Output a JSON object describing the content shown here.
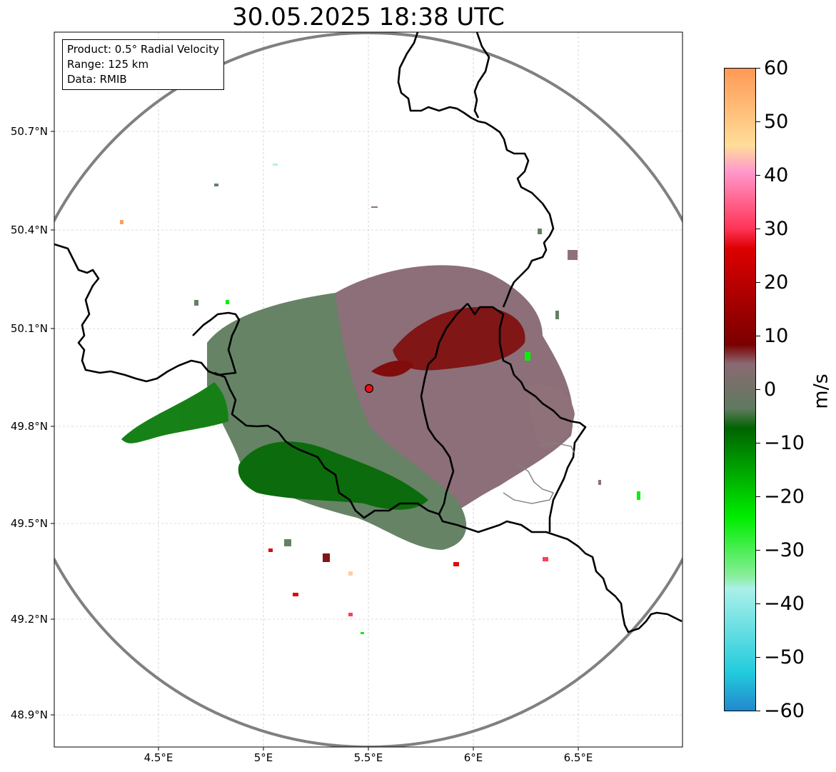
{
  "title": "30.05.2025 18:38 UTC",
  "info": {
    "product": "Product: 0.5° Radial Velocity",
    "range": "Range: 125 km",
    "data": "Data: RMIB"
  },
  "axes": {
    "lat_ticks": [
      "50.7°N",
      "50.4°N",
      "50.1°N",
      "49.8°N",
      "49.5°N",
      "49.2°N",
      "48.9°N"
    ],
    "lon_ticks": [
      "4.5°E",
      "5°E",
      "5.5°E",
      "6°E",
      "6.5°E"
    ]
  },
  "colorbar": {
    "unit": "m/s",
    "ticks": [
      "60",
      "50",
      "40",
      "30",
      "20",
      "10",
      "0",
      "−10",
      "−20",
      "−30",
      "−40",
      "−50",
      "−60"
    ],
    "colors": {
      "outbound_high": "#ff9955",
      "outbound_mid": "#ff3355",
      "outbound_red": "#dd0000",
      "outbound_dark": "#7a0000",
      "near_zero_pos": "#8a6a72",
      "near_zero_neg": "#5e7a5e",
      "inbound_dark": "#006400",
      "inbound_green": "#00ee00",
      "inbound_light": "#aaf0e8",
      "inbound_cyan": "#22ccdd",
      "inbound_blue": "#2288cc"
    }
  },
  "radar_site": {
    "color": "#ee1111"
  },
  "colors": {
    "range_ring": "#808080",
    "border": "#000000",
    "grid": "#bbbbbb"
  }
}
